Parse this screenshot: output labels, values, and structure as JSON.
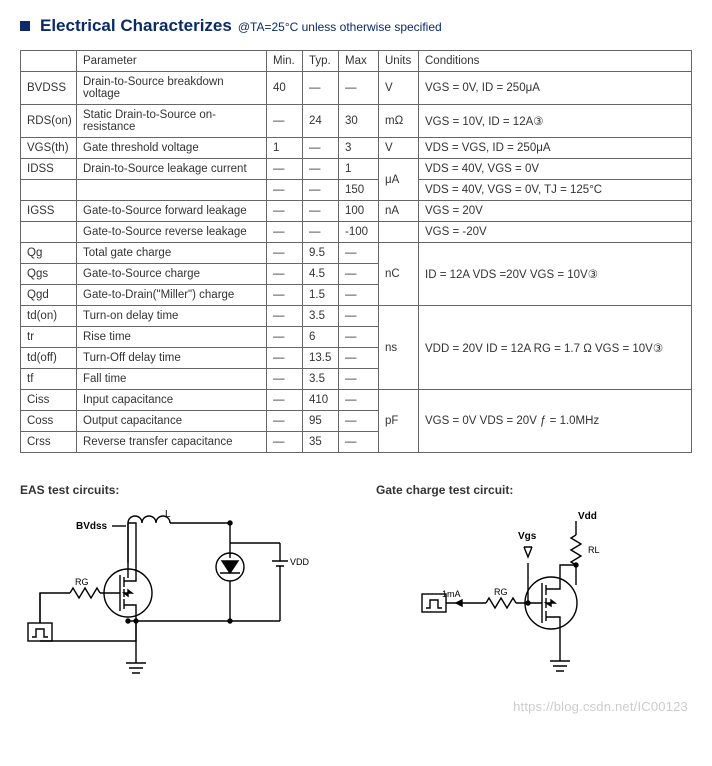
{
  "header": {
    "title": "Electrical Characterizes",
    "subtitle": "@TA=25°C unless otherwise specified"
  },
  "table": {
    "columns": [
      "",
      "Parameter",
      "Min.",
      "Typ.",
      "Max",
      "Units",
      "Conditions"
    ],
    "rows": [
      {
        "sym": "BVDSS",
        "param": "Drain-to-Source breakdown voltage",
        "min": "40",
        "typ": "—",
        "max": "—",
        "units": "V",
        "cond": "VGS = 0V, ID = 250μA"
      },
      {
        "sym": "RDS(on)",
        "param": "Static Drain-to-Source on-resistance",
        "min": "—",
        "typ": "24",
        "max": "30",
        "units": "mΩ",
        "cond": "VGS = 10V, ID = 12A③"
      },
      {
        "sym": "VGS(th)",
        "param": "Gate threshold voltage",
        "min": "1",
        "typ": "—",
        "max": "3",
        "units": "V",
        "cond": "VDS = VGS, ID = 250μA"
      },
      {
        "sym": "IDSS",
        "param": "Drain-to-Source leakage current",
        "min": "—",
        "typ": "—",
        "max": "1",
        "units_rowspan": 2,
        "units": "μA",
        "cond": "VDS = 40V, VGS = 0V"
      },
      {
        "sym_blank": true,
        "param_blank": true,
        "min": "—",
        "typ": "—",
        "max": "150",
        "cond": "VDS = 40V, VGS = 0V, TJ = 125°C"
      },
      {
        "sym": "IGSS",
        "param": "Gate-to-Source forward leakage",
        "min": "—",
        "typ": "—",
        "max": "100",
        "units": "nA",
        "cond": "VGS = 20V"
      },
      {
        "sym_blank": true,
        "param": "Gate-to-Source reverse leakage",
        "min": "—",
        "typ": "—",
        "max": "-100",
        "units_blank": true,
        "cond": "VGS = -20V"
      },
      {
        "sym": "Qg",
        "param": "Total gate charge",
        "min": "—",
        "typ": "9.5",
        "max": "—",
        "units_rowspan": 3,
        "units": "nC",
        "cond_rowspan": 3,
        "cond": "ID = 12A VDS =20V VGS = 10V③"
      },
      {
        "sym": "Qgs",
        "param": "Gate-to-Source charge",
        "min": "—",
        "typ": "4.5",
        "max": "—"
      },
      {
        "sym": "Qgd",
        "param": "Gate-to-Drain(\"Miller\") charge",
        "min": "—",
        "typ": "1.5",
        "max": "—"
      },
      {
        "sym": "td(on)",
        "param": "Turn-on delay time",
        "min": "—",
        "typ": "3.5",
        "max": "—",
        "units_rowspan": 4,
        "units": "ns",
        "cond_rowspan": 4,
        "cond": "VDD = 20V ID = 12A RG = 1.7 Ω VGS = 10V③"
      },
      {
        "sym": "tr",
        "param": "Rise time",
        "min": "—",
        "typ": "6",
        "max": "—"
      },
      {
        "sym": "td(off)",
        "param": "Turn-Off delay time",
        "min": "—",
        "typ": "13.5",
        "max": "—"
      },
      {
        "sym": "tf",
        "param": "Fall time",
        "min": "—",
        "typ": "3.5",
        "max": "—"
      },
      {
        "sym": "Ciss",
        "param": "Input capacitance",
        "min": "—",
        "typ": "410",
        "max": "—",
        "units_rowspan": 3,
        "units": "pF",
        "cond_rowspan": 3,
        "cond": "VGS = 0V VDS = 20V ƒ = 1.0MHz"
      },
      {
        "sym": "Coss",
        "param": "Output capacitance",
        "min": "—",
        "typ": "95",
        "max": "—"
      },
      {
        "sym": "Crss",
        "param": "Reverse transfer capacitance",
        "min": "—",
        "typ": "35",
        "max": "—"
      }
    ]
  },
  "circuits": {
    "left": {
      "title": "EAS test circuits:",
      "labels": {
        "bv": "BVdss",
        "L": "L",
        "vdd": "VDD",
        "rg": "RG"
      }
    },
    "right": {
      "title": "Gate charge test circuit:",
      "labels": {
        "vdd": "Vdd",
        "rl": "RL",
        "vgs": "Vgs",
        "i": "1mA",
        "rg": "RG"
      }
    }
  },
  "watermark": "https://blog.csdn.net/IC00123"
}
